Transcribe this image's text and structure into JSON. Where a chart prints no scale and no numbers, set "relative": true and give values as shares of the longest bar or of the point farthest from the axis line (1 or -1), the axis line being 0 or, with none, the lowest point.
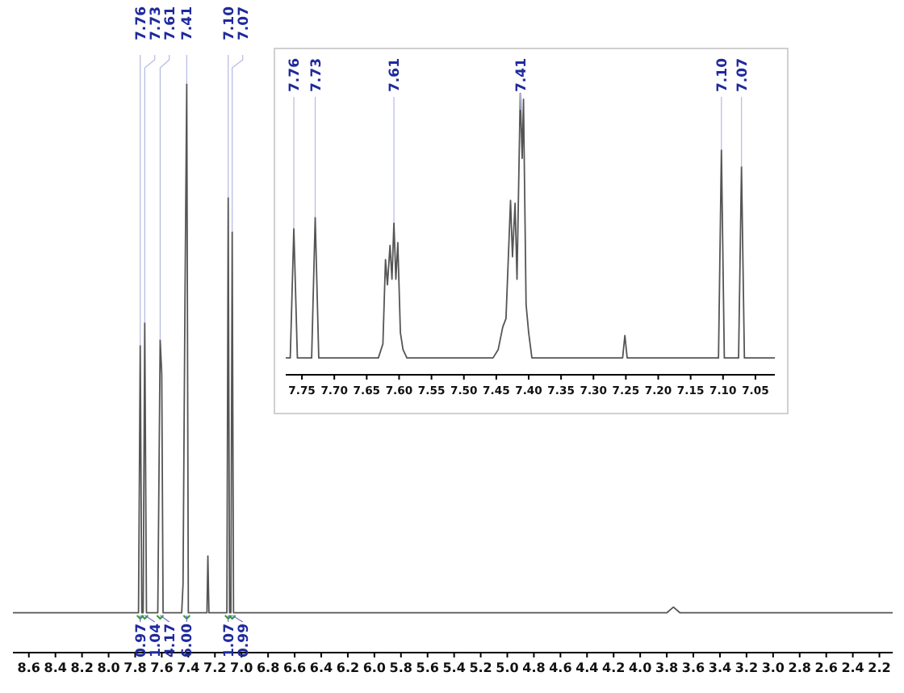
{
  "chart_data": [
    {
      "type": "line",
      "relative": true,
      "xlim": [
        8.72,
        2.1
      ],
      "xticks": [
        8.6,
        8.4,
        8.2,
        {
          "value": 8,
          "label": "8.0"
        },
        7.8,
        7.6,
        7.4,
        7.2,
        {
          "value": 7,
          "label": "7.0"
        },
        6.8,
        6.6,
        6.4,
        6.2,
        {
          "value": 6,
          "label": "6.0"
        },
        5.8,
        5.6,
        5.4,
        5.2,
        {
          "value": 5,
          "label": "5.0"
        },
        4.8,
        4.6,
        4.4,
        4.2,
        {
          "value": 4,
          "label": "4.0"
        },
        3.8,
        3.6,
        3.4,
        3.2,
        {
          "value": 3,
          "label": "3.0"
        },
        2.8,
        2.6,
        2.4,
        2.2
      ],
      "x": [
        8.72,
        7.775,
        7.762,
        7.75,
        7.74,
        7.728,
        7.715,
        7.63,
        7.612,
        7.6,
        7.59,
        7.45,
        7.44,
        7.425,
        7.412,
        7.4,
        7.26,
        7.253,
        7.245,
        7.11,
        7.1,
        7.09,
        7.08,
        7.07,
        7.06,
        3.8,
        3.75,
        3.7,
        2.1
      ],
      "series": [
        {
          "color": "#555555",
          "values": [
            0.07,
            0.07,
            0.54,
            0.07,
            0.07,
            0.58,
            0.07,
            0.07,
            0.55,
            0.49,
            0.07,
            0.07,
            0.12,
            0.63,
            1,
            0.07,
            0.07,
            0.17,
            0.07,
            0.07,
            0.8,
            0.07,
            0.07,
            0.74,
            0.07,
            0.07,
            0.08,
            0.07,
            0.07
          ]
        }
      ],
      "annotations": [
        {
          "text": "7.76",
          "x": 7.762,
          "y": 0.54
        },
        {
          "text": "7.73",
          "x": 7.728,
          "y": 0.58
        },
        {
          "text": "7.61",
          "x": 7.612,
          "y": 0.55
        },
        {
          "text": "7.41",
          "x": 7.412,
          "y": 1
        },
        {
          "text": "7.10",
          "x": 7.1,
          "y": 0.8
        },
        {
          "text": "7.07",
          "x": 7.07,
          "y": 0.74
        },
        {
          "text": "0.97",
          "x": 7.762
        },
        {
          "text": "1.04",
          "x": 7.728
        },
        {
          "text": "4.17",
          "x": 7.612
        },
        {
          "text": "6.00",
          "x": 7.412
        },
        {
          "text": "1.07",
          "x": 7.1
        },
        {
          "text": "0.99",
          "x": 7.07
        }
      ]
    },
    {
      "type": "line",
      "relative": true,
      "xlim": [
        7.775,
        7.02
      ],
      "xticks": [
        7.75,
        {
          "value": 7.7,
          "label": "7.70"
        },
        7.65,
        {
          "value": 7.6,
          "label": "7.60"
        },
        7.55,
        {
          "value": 7.5,
          "label": "7.50"
        },
        7.45,
        {
          "value": 7.4,
          "label": "7.40"
        },
        7.35,
        {
          "value": 7.3,
          "label": "7.30"
        },
        7.25,
        {
          "value": 7.2,
          "label": "7.20"
        },
        7.15,
        {
          "value": 7.1,
          "label": "7.10"
        },
        7.05
      ],
      "x": [
        7.775,
        7.768,
        7.7625,
        7.757,
        7.735,
        7.7295,
        7.724,
        7.632,
        7.625,
        7.621,
        7.618,
        7.614,
        7.611,
        7.608,
        7.605,
        7.602,
        7.598,
        7.594,
        7.588,
        7.455,
        7.447,
        7.44,
        7.435,
        7.428,
        7.425,
        7.421,
        7.418,
        7.413,
        7.41,
        7.408,
        7.404,
        7.4,
        7.395,
        7.255,
        7.2515,
        7.248,
        7.107,
        7.1025,
        7.098,
        7.076,
        7.0715,
        7.067,
        7.02
      ],
      "series": [
        {
          "color": "#555555",
          "values": [
            0.06,
            0.06,
            0.52,
            0.06,
            0.06,
            0.56,
            0.06,
            0.06,
            0.11,
            0.41,
            0.32,
            0.46,
            0.34,
            0.54,
            0.34,
            0.47,
            0.15,
            0.09,
            0.06,
            0.06,
            0.09,
            0.17,
            0.2,
            0.62,
            0.42,
            0.61,
            0.34,
            1,
            0.77,
            0.98,
            0.25,
            0.15,
            0.06,
            0.06,
            0.14,
            0.06,
            0.06,
            0.8,
            0.06,
            0.06,
            0.74,
            0.06,
            0.06
          ]
        }
      ],
      "annotations": [
        {
          "text": "7.76",
          "x": 7.7625,
          "y": 0.52
        },
        {
          "text": "7.73",
          "x": 7.7295,
          "y": 0.56
        },
        {
          "text": "7.61",
          "x": 7.608,
          "y": 0.54
        },
        {
          "text": "7.41",
          "x": 7.413,
          "y": 1
        },
        {
          "text": "7.10",
          "x": 7.1025,
          "y": 0.8
        },
        {
          "text": "7.07",
          "x": 7.0715,
          "y": 0.74
        }
      ]
    }
  ]
}
